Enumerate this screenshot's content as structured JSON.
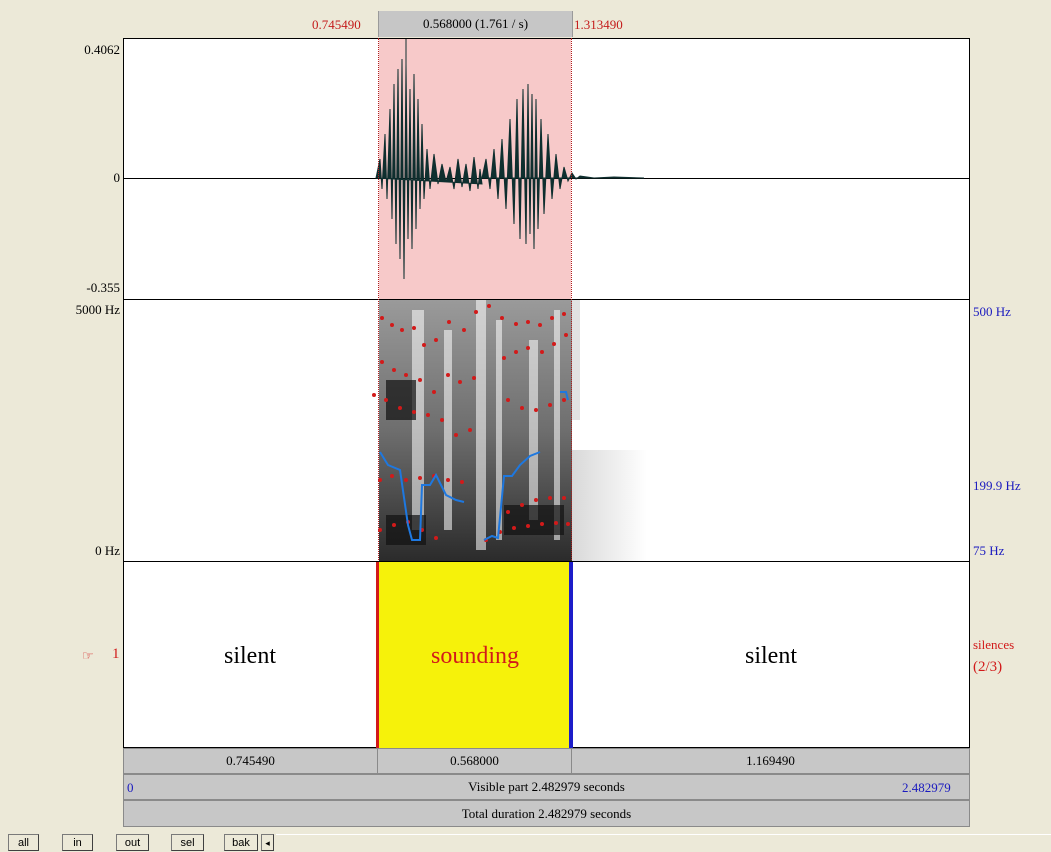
{
  "selection": {
    "start": "0.745490",
    "end": "1.313490",
    "duration_label": "0.568000 (1.761 / s)"
  },
  "waveform": {
    "max_label": "0.4062",
    "zero_label": "0",
    "min_label": "-0.355"
  },
  "spectrogram": {
    "top_label": "5000 Hz",
    "bottom_label": "0 Hz",
    "pitch_top_label": "500 Hz",
    "pitch_mid_label": "199.9 Hz",
    "pitch_bottom_label": "75 Hz"
  },
  "tier": {
    "number_label": "1",
    "pointer_glyph": "☞",
    "name_label": "silences",
    "count_label": "(2/3)",
    "intervals": [
      "silent",
      "sounding",
      "silent"
    ]
  },
  "durations": {
    "left": "0.745490",
    "middle": "0.568000",
    "right": "1.169490"
  },
  "visible": {
    "start": "0",
    "label": "Visible part 2.482979 seconds",
    "end": "2.482979"
  },
  "total": {
    "label": "Total duration 2.482979 seconds"
  },
  "buttons": {
    "all": "all",
    "in": "in",
    "out": "out",
    "sel": "sel",
    "bak": "bak",
    "scroll_left": "◂"
  },
  "colors": {
    "selection_fill": "#f7c9c9",
    "sounding_fill": "#f6f20a",
    "formant_dots": "#d21a1a",
    "pitch_line": "#1e78e0",
    "boundary_red": "#d21a1a",
    "boundary_blue": "#1d1dc9"
  }
}
